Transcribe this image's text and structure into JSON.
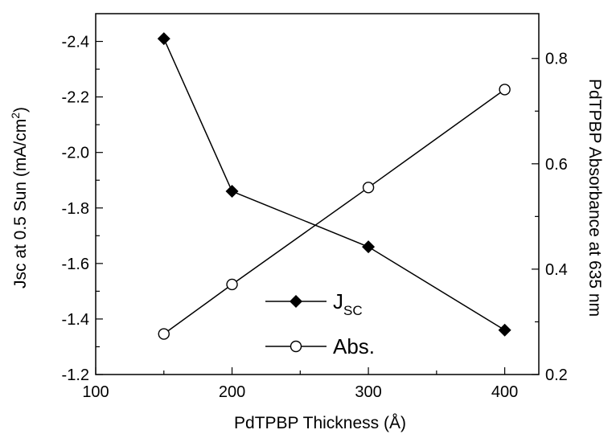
{
  "chart_data": {
    "type": "line",
    "title": "",
    "x": [
      150,
      200,
      300,
      400
    ],
    "xlabel": "PdTPBP Thickness (Å)",
    "xlim": [
      100,
      425
    ],
    "xticks": [
      100,
      200,
      300,
      400
    ],
    "ylabel": {
      "text": "Jsc at 0.5 Sun (mA/cm",
      "sup": "2",
      "close": ")"
    },
    "ylim": [
      -1.2,
      -2.5
    ],
    "yticks": [
      -1.2,
      -1.4,
      -1.6,
      -1.8,
      -2.0,
      -2.2,
      -2.4
    ],
    "ytick_labels": [
      "-1.2",
      "-1.4",
      "-1.6",
      "-1.8",
      "-2.0",
      "-2.2",
      "-2.4"
    ],
    "y2label": "PdTPBP Absorbance at 635 nm",
    "y2lim": [
      0.2,
      0.885
    ],
    "y2ticks": [
      0.2,
      0.4,
      0.6,
      0.8
    ],
    "y2tick_labels": [
      "0.2",
      "0.4",
      "0.6",
      "0.8"
    ],
    "grid": false,
    "legend_position": "bottom-center",
    "series": [
      {
        "axis": "left",
        "marker": "filled-diamond",
        "color": "#000000",
        "values": [
          -2.41,
          -1.86,
          -1.66,
          -1.36
        ],
        "legend": {
          "main": "J",
          "sub": "SC"
        }
      },
      {
        "axis": "right",
        "marker": "open-circle",
        "color": "#000000",
        "values": [
          0.277,
          0.371,
          0.555,
          0.741
        ],
        "legend": {
          "main": "Abs.",
          "sub": ""
        }
      }
    ]
  }
}
